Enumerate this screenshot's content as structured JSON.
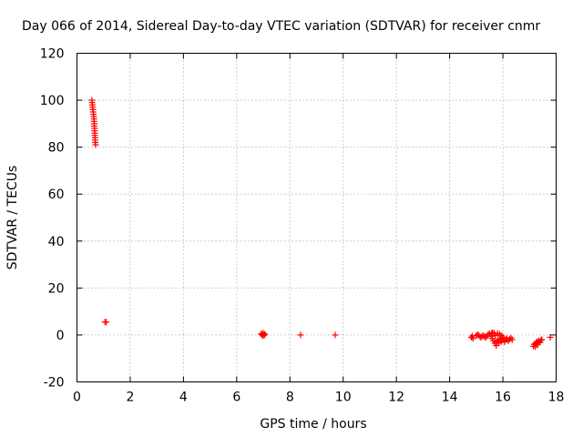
{
  "chart_data": {
    "type": "scatter",
    "title": "Day 066 of 2014, Sidereal Day-to-day VTEC variation (SDTVAR) for receiver cnmr",
    "xlabel": "GPS time / hours",
    "ylabel": "SDTVAR / TECUs",
    "xlim": [
      0,
      18
    ],
    "ylim": [
      -20,
      120
    ],
    "xticks": [
      0,
      2,
      4,
      6,
      8,
      10,
      12,
      14,
      16,
      18
    ],
    "yticks": [
      -20,
      0,
      20,
      40,
      60,
      80,
      100,
      120
    ],
    "grid": true,
    "marker": "+",
    "color": "#ff0000",
    "series": [
      {
        "name": "SDTVAR",
        "points": [
          [
            0.56,
            100
          ],
          [
            0.57,
            99
          ],
          [
            0.58,
            98
          ],
          [
            0.59,
            97
          ],
          [
            0.6,
            96
          ],
          [
            0.61,
            95
          ],
          [
            0.62,
            94
          ],
          [
            0.63,
            93
          ],
          [
            0.64,
            92
          ],
          [
            0.64,
            91
          ],
          [
            0.65,
            90
          ],
          [
            0.65,
            89
          ],
          [
            0.66,
            88
          ],
          [
            0.66,
            87
          ],
          [
            0.67,
            86
          ],
          [
            0.67,
            85
          ],
          [
            0.68,
            84
          ],
          [
            0.68,
            83
          ],
          [
            0.69,
            82
          ],
          [
            0.7,
            81
          ],
          [
            1.05,
            5.5
          ],
          [
            1.1,
            5.5
          ],
          [
            6.92,
            0.5
          ],
          [
            6.95,
            0.2
          ],
          [
            6.98,
            -0.3
          ],
          [
            7.0,
            0.8
          ],
          [
            7.03,
            -0.1
          ],
          [
            7.06,
            0.3
          ],
          [
            8.4,
            0
          ],
          [
            9.7,
            0
          ],
          [
            14.82,
            -1.0
          ],
          [
            14.85,
            -0.4
          ],
          [
            14.88,
            -1.5
          ],
          [
            15.0,
            -0.3
          ],
          [
            15.05,
            0.2
          ],
          [
            15.1,
            -0.2
          ],
          [
            15.15,
            -1.0
          ],
          [
            15.2,
            -0.8
          ],
          [
            15.25,
            -0.2
          ],
          [
            15.3,
            -0.6
          ],
          [
            15.35,
            -1.2
          ],
          [
            15.4,
            -0.4
          ],
          [
            15.45,
            0.3
          ],
          [
            15.5,
            0.5
          ],
          [
            15.55,
            -0.5
          ],
          [
            15.58,
            0.8
          ],
          [
            15.6,
            -1.5
          ],
          [
            15.62,
            1.0
          ],
          [
            15.65,
            -2.5
          ],
          [
            15.68,
            0.6
          ],
          [
            15.7,
            -3.5
          ],
          [
            15.72,
            -0.2
          ],
          [
            15.75,
            -4.5
          ],
          [
            15.78,
            -3.0
          ],
          [
            15.8,
            0.7
          ],
          [
            15.82,
            -2.0
          ],
          [
            15.85,
            -3.5
          ],
          [
            15.88,
            0.3
          ],
          [
            15.9,
            -1.5
          ],
          [
            15.93,
            -2.8
          ],
          [
            15.95,
            -0.3
          ],
          [
            15.98,
            -2.2
          ],
          [
            16.0,
            -1.0
          ],
          [
            16.03,
            -2.0
          ],
          [
            16.06,
            -3.0
          ],
          [
            16.1,
            -2.0
          ],
          [
            16.15,
            -1.5
          ],
          [
            16.2,
            -2.5
          ],
          [
            16.25,
            -1.8
          ],
          [
            16.3,
            -1.2
          ],
          [
            16.35,
            -2.0
          ],
          [
            17.15,
            -4.8
          ],
          [
            17.18,
            -4.0
          ],
          [
            17.2,
            -3.8
          ],
          [
            17.22,
            -5.0
          ],
          [
            17.25,
            -3.3
          ],
          [
            17.28,
            -3.0
          ],
          [
            17.3,
            -4.2
          ],
          [
            17.33,
            -2.8
          ],
          [
            17.36,
            -2.5
          ],
          [
            17.4,
            -3.2
          ],
          [
            17.43,
            -2.2
          ],
          [
            17.46,
            -2.0
          ],
          [
            17.78,
            -1.0
          ]
        ]
      }
    ]
  }
}
